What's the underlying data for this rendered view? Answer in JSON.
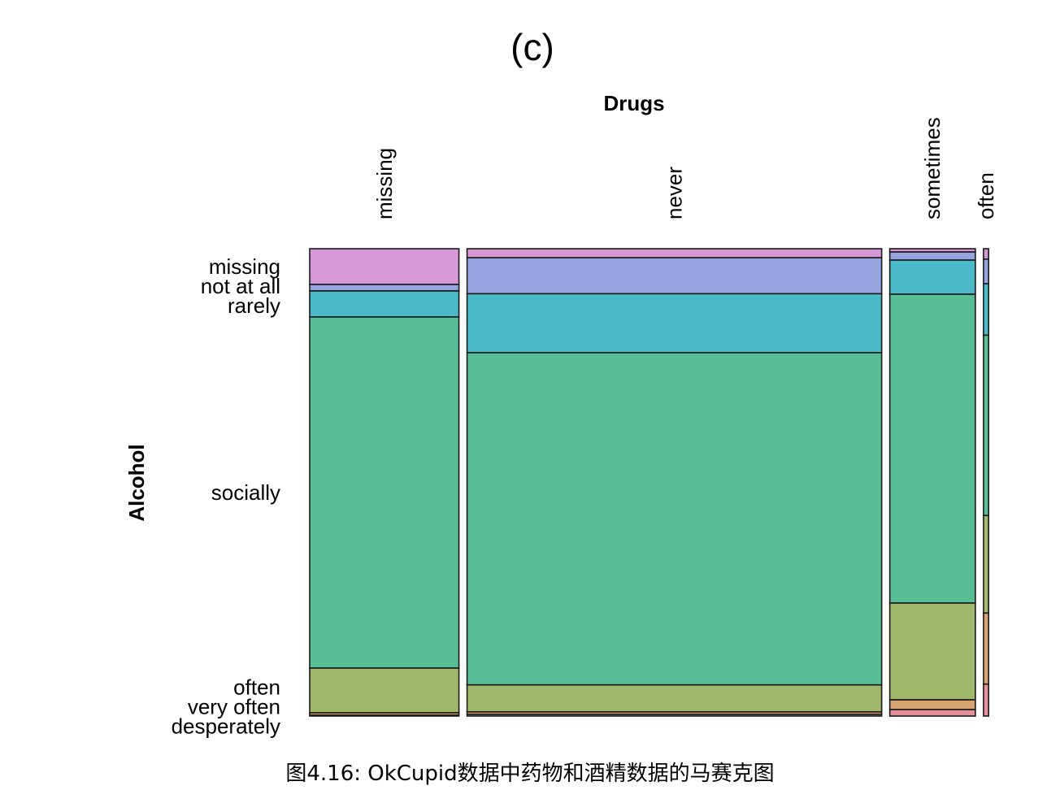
{
  "caption": "图4.16: OkCupid数据中药物和酒精数据的马赛克图",
  "chart_data": {
    "type": "mosaic",
    "title": "(c)",
    "xlabel": "Drugs",
    "ylabel": "Alcohol",
    "x_categories": [
      "missing",
      "never",
      "sometimes",
      "often"
    ],
    "x_proportions": [
      0.2384,
      0.6624,
      0.1367,
      0.0082
    ],
    "y_categories": [
      "missing",
      "not at all",
      "rarely",
      "socially",
      "often",
      "very often",
      "desperately"
    ],
    "colors": [
      "#D597D5",
      "#96A5E0",
      "#4AB9C8",
      "#57BE95",
      "#A1B76C",
      "#D6A370",
      "#E48F98"
    ],
    "conditional_proportions": [
      [
        0.0765,
        0.0139,
        0.0557,
        0.7513,
        0.0957,
        0.0052,
        0.0017
      ],
      [
        0.0193,
        0.0771,
        0.1261,
        0.7109,
        0.0578,
        0.0053,
        0.0035
      ],
      [
        0.007,
        0.0174,
        0.073,
        0.6609,
        0.207,
        0.0209,
        0.0139
      ],
      [
        0.0224,
        0.0525,
        0.1102,
        0.3858,
        0.2087,
        0.1521,
        0.0683
      ]
    ]
  }
}
